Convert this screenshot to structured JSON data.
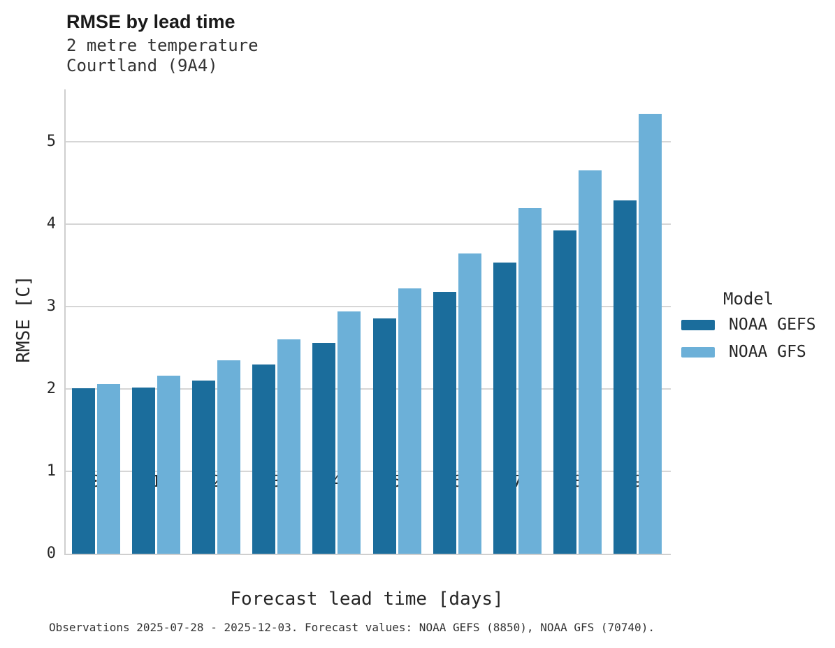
{
  "header": {
    "title": "RMSE by lead time",
    "subtitle_line1": "2 metre temperature",
    "subtitle_line2": "Courtland (9A4)"
  },
  "axes": {
    "x_title": "Forecast lead time [days]",
    "y_title": "RMSE [C]"
  },
  "legend": {
    "title": "Model"
  },
  "caption": {
    "text": "Observations 2025-07-28 - 2025-12-03. Forecast values: NOAA GEFS (8850), NOAA GFS (70740)."
  },
  "colors": {
    "gefs": "#1b6d9c",
    "gfs": "#6cb0d8",
    "gridline": "#d6d6d6",
    "axis_line": "#cfcfcf",
    "text": "#262626"
  },
  "chart_data": {
    "type": "bar",
    "title": "RMSE by lead time",
    "subtitle": "2 metre temperature, Courtland (9A4)",
    "categories": [
      "0",
      "1",
      "2",
      "3",
      "4",
      "5",
      "6",
      "7",
      "8",
      "9"
    ],
    "series": [
      {
        "name": "NOAA GEFS",
        "color": "#1b6d9c",
        "values": [
          2.01,
          2.02,
          2.1,
          2.3,
          2.56,
          2.86,
          3.18,
          3.54,
          3.93,
          4.29
        ]
      },
      {
        "name": "NOAA GFS",
        "color": "#6cb0d8",
        "values": [
          2.06,
          2.16,
          2.35,
          2.6,
          2.94,
          3.22,
          3.65,
          4.2,
          4.66,
          5.34
        ]
      }
    ],
    "xlabel": "Forecast lead time [days]",
    "ylabel": "RMSE [C]",
    "ylim": [
      0,
      5.64
    ],
    "yticks": [
      0,
      1,
      2,
      3,
      4,
      5
    ],
    "grid": true,
    "legend_title": "Model",
    "legend_position": "right",
    "footnote": "Observations 2025-07-28 - 2025-12-03. Forecast values: NOAA GEFS (8850), NOAA GFS (70740)."
  }
}
